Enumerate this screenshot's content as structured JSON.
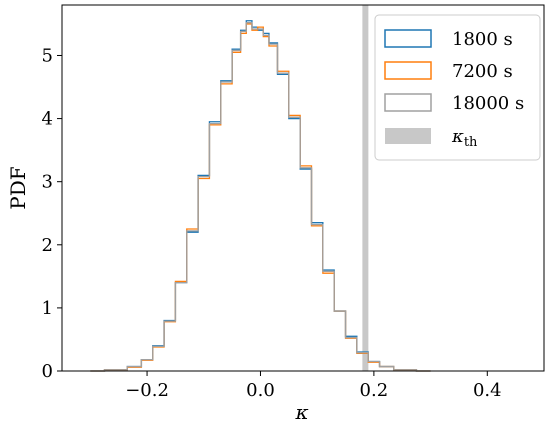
{
  "chart_data": {
    "type": "step-histogram",
    "xlabel": "κ",
    "ylabel": "PDF",
    "xlim": [
      -0.35,
      0.5
    ],
    "ylim": [
      0,
      5.8
    ],
    "x_ticks": [
      -0.2,
      0.0,
      0.2,
      0.4
    ],
    "x_tick_labels": [
      "−0.2",
      "0.0",
      "0.2",
      "0.4"
    ],
    "y_ticks": [
      0,
      1,
      2,
      3,
      4,
      5
    ],
    "y_tick_labels": [
      "0",
      "1",
      "2",
      "3",
      "4",
      "5"
    ],
    "threshold": {
      "label_base": "κ",
      "label_sub": "th",
      "x": 0.185,
      "color": "#c8c8c8"
    },
    "series": [
      {
        "name": "1800 s",
        "color": "#1f77b4",
        "x": [
          -0.3,
          -0.25,
          -0.22,
          -0.2,
          -0.18,
          -0.16,
          -0.14,
          -0.12,
          -0.1,
          -0.08,
          -0.06,
          -0.04,
          -0.03,
          -0.02,
          -0.01,
          0.0,
          0.01,
          0.02,
          0.04,
          0.06,
          0.08,
          0.1,
          0.12,
          0.14,
          0.16,
          0.18,
          0.2,
          0.22,
          0.25,
          0.3
        ],
        "values": [
          0.0,
          0.02,
          0.07,
          0.18,
          0.4,
          0.8,
          1.4,
          2.2,
          3.1,
          3.95,
          4.6,
          5.1,
          5.4,
          5.55,
          5.45,
          5.4,
          5.35,
          5.2,
          4.7,
          4.0,
          3.2,
          2.35,
          1.6,
          0.95,
          0.55,
          0.3,
          0.15,
          0.07,
          0.02,
          0.0
        ]
      },
      {
        "name": "7200 s",
        "color": "#ff7f0e",
        "x": [
          -0.3,
          -0.25,
          -0.22,
          -0.2,
          -0.18,
          -0.16,
          -0.14,
          -0.12,
          -0.1,
          -0.08,
          -0.06,
          -0.04,
          -0.03,
          -0.02,
          -0.01,
          0.0,
          0.01,
          0.02,
          0.04,
          0.06,
          0.08,
          0.1,
          0.12,
          0.14,
          0.16,
          0.18,
          0.2,
          0.22,
          0.25,
          0.3
        ],
        "values": [
          0.0,
          0.02,
          0.06,
          0.17,
          0.38,
          0.78,
          1.42,
          2.25,
          3.05,
          3.9,
          4.55,
          5.05,
          5.35,
          5.5,
          5.4,
          5.45,
          5.3,
          5.15,
          4.75,
          4.05,
          3.25,
          2.3,
          1.55,
          0.95,
          0.52,
          0.28,
          0.14,
          0.07,
          0.02,
          0.0
        ]
      },
      {
        "name": "18000 s",
        "color": "#a0a0a0",
        "x": [
          -0.3,
          -0.25,
          -0.22,
          -0.2,
          -0.18,
          -0.16,
          -0.14,
          -0.12,
          -0.1,
          -0.08,
          -0.06,
          -0.04,
          -0.03,
          -0.02,
          -0.01,
          0.0,
          0.01,
          0.02,
          0.04,
          0.06,
          0.08,
          0.1,
          0.12,
          0.14,
          0.16,
          0.18,
          0.2,
          0.22,
          0.25,
          0.3
        ],
        "values": [
          0.0,
          0.02,
          0.07,
          0.18,
          0.39,
          0.79,
          1.4,
          2.22,
          3.08,
          3.92,
          4.58,
          5.08,
          5.38,
          5.52,
          5.42,
          5.42,
          5.32,
          5.18,
          4.72,
          4.02,
          3.22,
          2.32,
          1.58,
          0.95,
          0.53,
          0.29,
          0.15,
          0.07,
          0.02,
          0.0
        ]
      }
    ],
    "legend": {
      "placement": "top-right",
      "entries": [
        "1800 s",
        "7200 s",
        "18000 s"
      ]
    }
  }
}
